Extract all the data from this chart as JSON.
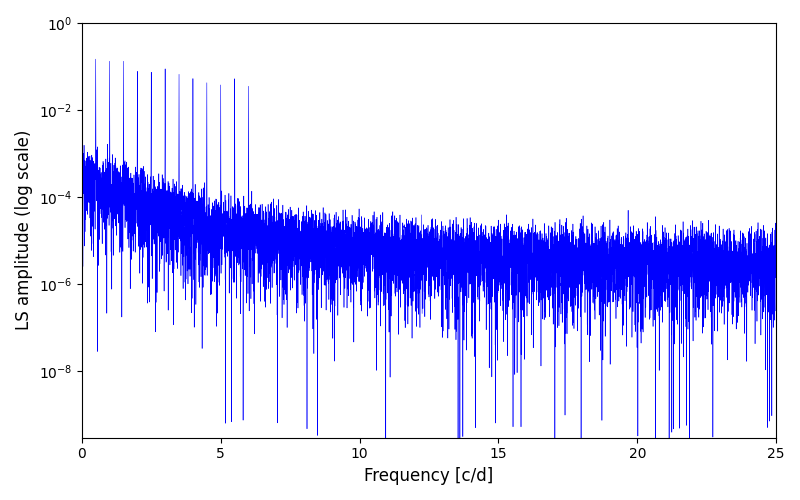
{
  "title": "",
  "xlabel": "Frequency [c/d]",
  "ylabel": "LS amplitude (log scale)",
  "line_color": "#0000ff",
  "xlim": [
    0,
    25
  ],
  "ylim": [
    3e-10,
    1.0
  ],
  "figsize": [
    8.0,
    5.0
  ],
  "dpi": 100,
  "n_freqs": 8000,
  "freq_max": 25.0,
  "seed": 12345,
  "background_color": "#ffffff",
  "linewidth": 0.4
}
